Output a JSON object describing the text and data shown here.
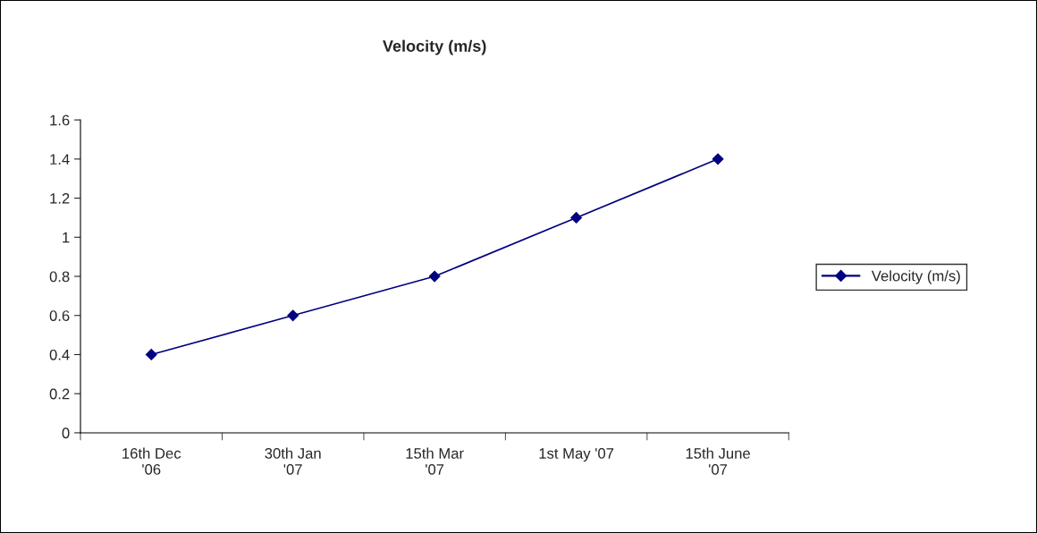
{
  "chart_data": {
    "type": "line",
    "title": "Velocity (m/s)",
    "categories": [
      "16th Dec\n'06",
      "30th Jan\n'07",
      "15th Mar\n'07",
      "1st May '07",
      "15th June\n'07"
    ],
    "series": [
      {
        "name": "Velocity (m/s)",
        "color": "#000080",
        "values": [
          0.4,
          0.6,
          0.8,
          1.1,
          1.4
        ]
      }
    ],
    "ylim": [
      0,
      1.6
    ],
    "yticks": [
      0,
      0.2,
      0.4,
      0.6,
      0.8,
      1,
      1.2,
      1.4,
      1.6
    ],
    "marker": "diamond",
    "line_style": "solid",
    "grid": false,
    "legend": "right"
  }
}
